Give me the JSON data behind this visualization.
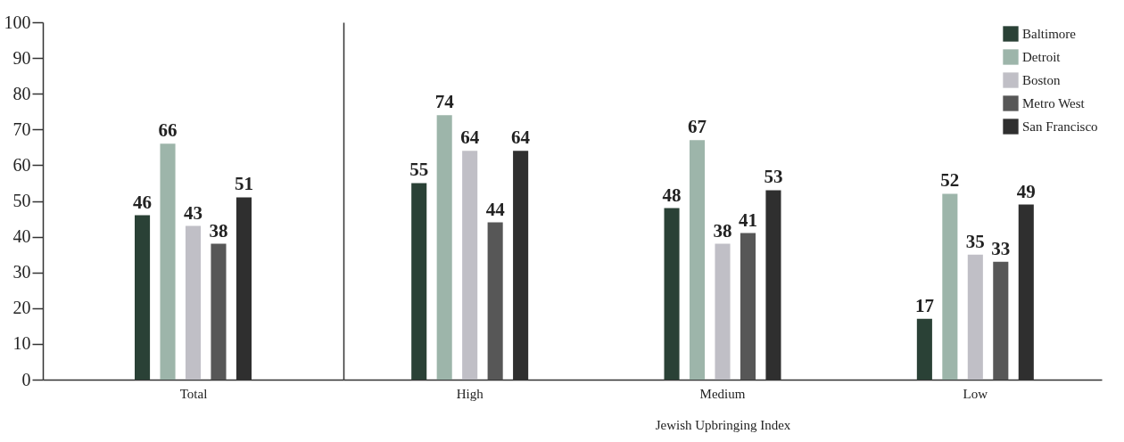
{
  "chart_data": [
    {
      "type": "bar",
      "categories": [
        null
      ],
      "xlabel": "Total",
      "series": [
        {
          "color": "#2a4136",
          "values": [
            46
          ]
        },
        {
          "color": "#9db5aa",
          "values": [
            66
          ]
        },
        {
          "color": "#c0bfc6",
          "values": [
            43
          ]
        },
        {
          "color": "#575757",
          "values": [
            38
          ]
        },
        {
          "color": "#2f2f2f",
          "values": [
            51
          ]
        }
      ],
      "ylim": [
        0,
        100
      ],
      "yticks": [
        0,
        10,
        20,
        30,
        40,
        50,
        60,
        70,
        80,
        90,
        100
      ],
      "data_labels": true
    },
    {
      "type": "bar",
      "categories": [
        "High",
        "Medium",
        "Low"
      ],
      "xlabel": "Jewish Upbringing Index",
      "series": [
        {
          "name": "Baltimore",
          "color": "#2a4136",
          "values": [
            55,
            48,
            17
          ]
        },
        {
          "name": "Detroit",
          "color": "#9db5aa",
          "values": [
            74,
            67,
            52
          ]
        },
        {
          "name": "Boston",
          "color": "#c0bfc6",
          "values": [
            64,
            38,
            35
          ]
        },
        {
          "name": "Metro West",
          "color": "#575757",
          "values": [
            44,
            41,
            33
          ]
        },
        {
          "name": "San Francisco",
          "color": "#2f2f2f",
          "values": [
            64,
            53,
            49
          ]
        }
      ],
      "ylim": [
        0,
        100
      ],
      "tick_labels": "x",
      "legend": "top right",
      "data_labels": true
    }
  ]
}
